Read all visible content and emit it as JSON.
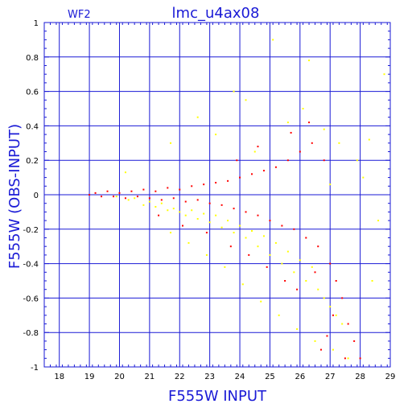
{
  "chart_data": {
    "type": "scatter",
    "title": "lmc_u4ax08",
    "subtitle": "WF2",
    "xlabel": "F555W INPUT",
    "ylabel": "F555W (OBS-INPUT)",
    "xlim": [
      17.5,
      29
    ],
    "ylim": [
      -1,
      1
    ],
    "xticks": [
      18,
      19,
      20,
      21,
      22,
      23,
      24,
      25,
      26,
      27,
      28,
      29
    ],
    "yticks": [
      -1,
      -0.8,
      -0.6,
      -0.4,
      -0.2,
      0,
      0.2,
      0.4,
      0.6,
      0.8,
      1
    ],
    "ytick_labels": [
      "-1",
      "-0.8",
      "-0.6",
      "-0.4",
      "-0.2",
      "0",
      "0.2",
      "0.4",
      "0.6",
      "0.8",
      "1"
    ],
    "grid": true,
    "colors": {
      "frame": "#1a1ad6",
      "series_red": "#ff0000",
      "series_yellow": "#ffff00"
    },
    "series": [
      {
        "color": "yellow",
        "points": [
          [
            19.9,
            -0.01
          ],
          [
            20.3,
            -0.03
          ],
          [
            20.5,
            -0.02
          ],
          [
            20.8,
            -0.06
          ],
          [
            21.0,
            -0.04
          ],
          [
            21.2,
            -0.07
          ],
          [
            21.4,
            -0.05
          ],
          [
            21.6,
            -0.09
          ],
          [
            21.8,
            -0.08
          ],
          [
            22.0,
            -0.1
          ],
          [
            22.2,
            -0.12
          ],
          [
            22.4,
            -0.09
          ],
          [
            22.6,
            -0.14
          ],
          [
            22.8,
            -0.11
          ],
          [
            23.0,
            -0.16
          ],
          [
            23.2,
            -0.12
          ],
          [
            23.4,
            -0.19
          ],
          [
            23.6,
            -0.15
          ],
          [
            23.8,
            -0.22
          ],
          [
            24.0,
            -0.18
          ],
          [
            24.2,
            -0.25
          ],
          [
            24.4,
            -0.21
          ],
          [
            24.6,
            -0.3
          ],
          [
            24.8,
            -0.24
          ],
          [
            25.0,
            -0.35
          ],
          [
            25.2,
            -0.28
          ],
          [
            25.4,
            -0.4
          ],
          [
            25.6,
            -0.33
          ],
          [
            25.8,
            -0.45
          ],
          [
            26.0,
            -0.38
          ],
          [
            26.2,
            -0.5
          ],
          [
            26.4,
            -0.42
          ],
          [
            26.6,
            -0.55
          ],
          [
            26.8,
            -0.6
          ],
          [
            27.0,
            -0.65
          ],
          [
            27.2,
            -0.7
          ],
          [
            27.4,
            -0.75
          ],
          [
            21.7,
            -0.22
          ],
          [
            22.3,
            -0.28
          ],
          [
            22.9,
            -0.35
          ],
          [
            23.5,
            -0.42
          ],
          [
            24.1,
            -0.52
          ],
          [
            24.7,
            -0.62
          ],
          [
            25.3,
            -0.7
          ],
          [
            25.9,
            -0.78
          ],
          [
            26.5,
            -0.85
          ],
          [
            27.1,
            -0.9
          ],
          [
            27.6,
            -0.95
          ],
          [
            20.2,
            0.13
          ],
          [
            21.7,
            0.3
          ],
          [
            22.6,
            0.45
          ],
          [
            23.8,
            0.6
          ],
          [
            24.5,
            0.25
          ],
          [
            25.6,
            0.42
          ],
          [
            26.1,
            0.5
          ],
          [
            26.8,
            0.38
          ],
          [
            27.3,
            0.3
          ],
          [
            27.9,
            0.2
          ],
          [
            28.3,
            0.32
          ],
          [
            28.6,
            -0.15
          ],
          [
            28.4,
            -0.5
          ],
          [
            28.1,
            0.1
          ],
          [
            26.3,
            0.78
          ],
          [
            25.1,
            0.9
          ],
          [
            27.0,
            0.06
          ],
          [
            24.2,
            0.55
          ],
          [
            23.2,
            0.35
          ],
          [
            28.8,
            0.7
          ]
        ]
      },
      {
        "color": "red",
        "points": [
          [
            19.0,
            0.0
          ],
          [
            19.2,
            0.01
          ],
          [
            19.4,
            -0.01
          ],
          [
            19.6,
            0.02
          ],
          [
            19.8,
            -0.01
          ],
          [
            20.0,
            0.01
          ],
          [
            20.2,
            -0.02
          ],
          [
            20.4,
            0.02
          ],
          [
            20.6,
            -0.01
          ],
          [
            20.8,
            0.03
          ],
          [
            21.0,
            -0.02
          ],
          [
            21.2,
            0.02
          ],
          [
            21.4,
            -0.03
          ],
          [
            21.6,
            0.04
          ],
          [
            21.8,
            -0.02
          ],
          [
            22.0,
            0.03
          ],
          [
            22.2,
            -0.04
          ],
          [
            22.4,
            0.05
          ],
          [
            22.6,
            -0.03
          ],
          [
            22.8,
            0.06
          ],
          [
            23.0,
            -0.05
          ],
          [
            23.2,
            0.07
          ],
          [
            23.4,
            -0.06
          ],
          [
            23.6,
            0.08
          ],
          [
            23.8,
            -0.08
          ],
          [
            24.0,
            0.1
          ],
          [
            24.2,
            -0.1
          ],
          [
            24.4,
            0.12
          ],
          [
            24.6,
            -0.12
          ],
          [
            24.8,
            0.14
          ],
          [
            25.0,
            -0.15
          ],
          [
            25.2,
            0.16
          ],
          [
            25.4,
            -0.18
          ],
          [
            25.6,
            0.2
          ],
          [
            25.8,
            -0.2
          ],
          [
            26.0,
            0.25
          ],
          [
            26.2,
            -0.25
          ],
          [
            26.4,
            0.3
          ],
          [
            26.6,
            -0.3
          ],
          [
            26.8,
            0.2
          ],
          [
            27.0,
            -0.4
          ],
          [
            27.2,
            -0.5
          ],
          [
            27.4,
            -0.6
          ],
          [
            27.6,
            -0.75
          ],
          [
            27.8,
            -0.85
          ],
          [
            28.0,
            -0.95
          ],
          [
            26.3,
            0.42
          ],
          [
            26.5,
            -0.45
          ],
          [
            27.1,
            -0.7
          ],
          [
            26.9,
            -0.82
          ],
          [
            25.9,
            -0.55
          ],
          [
            25.5,
            -0.5
          ],
          [
            24.9,
            -0.42
          ],
          [
            24.3,
            -0.35
          ],
          [
            23.7,
            -0.3
          ],
          [
            22.9,
            -0.22
          ],
          [
            22.1,
            -0.18
          ],
          [
            21.3,
            -0.12
          ],
          [
            26.7,
            -0.9
          ],
          [
            27.5,
            -0.95
          ],
          [
            25.7,
            0.36
          ],
          [
            24.6,
            0.28
          ],
          [
            23.9,
            0.2
          ]
        ]
      }
    ]
  }
}
